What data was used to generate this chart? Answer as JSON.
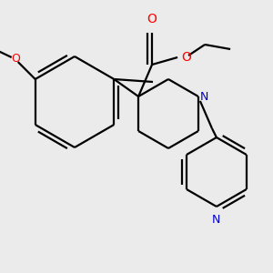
{
  "bg_color": "#ebebeb",
  "bond_color": "#000000",
  "o_color": "#ff0000",
  "n_color": "#0000cc",
  "lw": 1.6,
  "fig_size": [
    3.0,
    3.0
  ],
  "dpi": 100,
  "xlim": [
    0,
    300
  ],
  "ylim": [
    0,
    300
  ]
}
